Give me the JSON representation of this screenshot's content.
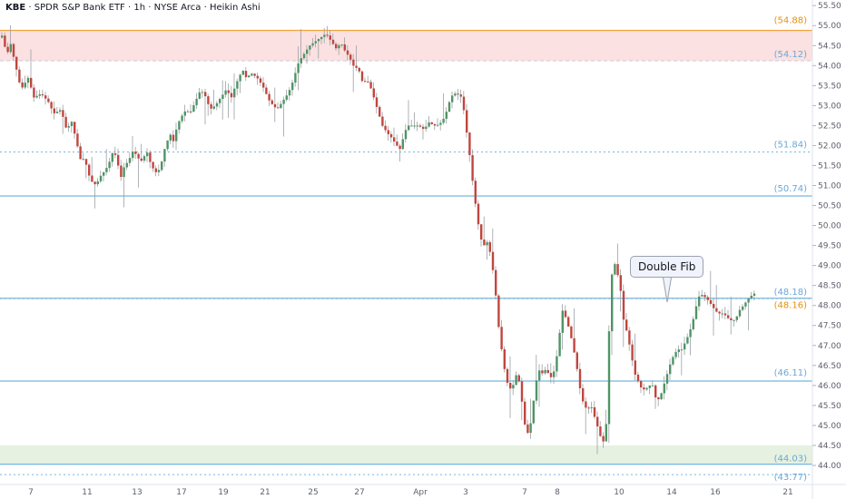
{
  "header": {
    "symbol": "KBE",
    "title": "SPDR S&P Bank ETF",
    "interval": "1h",
    "exchange": "NYSE Arca",
    "chart_style": "Heikin Ashi",
    "separator": "·"
  },
  "colors": {
    "up": "#4f9465",
    "down": "#c0463e",
    "wick": "#9aa0a6",
    "fib_line": "#74b6df",
    "fib_label": "#6aa8d6",
    "resistance": "#f2a33a",
    "resistance_label": "#e8900c",
    "resistance_zone": "#fbe1e1",
    "support_zone": "#e6f1e1"
  },
  "annotation": {
    "text": "Double Fib"
  },
  "chart_data": {
    "type": "candlestick",
    "price_axis": {
      "min": 43.75,
      "max": 55.55,
      "tick_step": 0.5,
      "ticks": [
        "55.50",
        "55.00",
        "54.50",
        "54.00",
        "53.50",
        "53.00",
        "52.50",
        "52.00",
        "51.50",
        "51.00",
        "50.50",
        "50.00",
        "49.50",
        "49.00",
        "48.50",
        "48.00",
        "47.50",
        "47.00",
        "46.50",
        "46.00",
        "45.50",
        "45.00",
        "44.50",
        "44.00"
      ]
    },
    "time_axis": {
      "labels": [
        "7",
        "11",
        "13",
        "17",
        "19",
        "21",
        "25",
        "27",
        "Apr",
        "3",
        "7",
        "8",
        "10",
        "14",
        "16",
        "21"
      ]
    },
    "levels": [
      {
        "label": "(54.88)",
        "value": 54.88,
        "kind": "resistance",
        "style": "solid"
      },
      {
        "label": "(54.12)",
        "value": 54.12,
        "kind": "fib",
        "style": "dashed"
      },
      {
        "label": "(51.84)",
        "value": 51.84,
        "kind": "fib",
        "style": "dotted"
      },
      {
        "label": "(50.74)",
        "value": 50.74,
        "kind": "fib",
        "style": "solid"
      },
      {
        "label": "(48.18)",
        "value": 48.18,
        "kind": "fib",
        "style": "solid"
      },
      {
        "label": "(48.16)",
        "value": 48.16,
        "kind": "resistance",
        "style": "dotted"
      },
      {
        "label": "(46.11)",
        "value": 46.11,
        "kind": "fib",
        "style": "solid"
      },
      {
        "label": "(44.03)",
        "value": 44.03,
        "kind": "fib",
        "style": "solid"
      },
      {
        "label": "(43.77)",
        "value": 43.77,
        "kind": "fib",
        "style": "dotted"
      }
    ],
    "zones": [
      {
        "from": 54.12,
        "to": 54.88,
        "kind": "resistance"
      },
      {
        "from": 44.03,
        "to": 44.5,
        "kind": "support"
      }
    ],
    "path": [
      [
        0,
        54.7
      ],
      [
        2,
        54.8
      ],
      [
        6,
        54.2
      ],
      [
        10,
        54.6
      ],
      [
        16,
        54.0
      ],
      [
        22,
        53.4
      ],
      [
        30,
        53.7
      ],
      [
        36,
        53.2
      ],
      [
        44,
        53.3
      ],
      [
        52,
        53.1
      ],
      [
        58,
        52.8
      ],
      [
        66,
        52.9
      ],
      [
        72,
        52.4
      ],
      [
        78,
        52.6
      ],
      [
        84,
        52.0
      ],
      [
        88,
        51.6
      ],
      [
        92,
        51.7
      ],
      [
        96,
        51.3
      ],
      [
        100,
        51.1
      ],
      [
        105,
        51.0
      ],
      [
        108,
        51.2
      ],
      [
        112,
        51.3
      ],
      [
        118,
        51.5
      ],
      [
        124,
        51.9
      ],
      [
        128,
        51.6
      ],
      [
        132,
        51.2
      ],
      [
        136,
        51.5
      ],
      [
        140,
        51.6
      ],
      [
        146,
        51.9
      ],
      [
        150,
        51.7
      ],
      [
        156,
        51.6
      ],
      [
        160,
        51.9
      ],
      [
        164,
        51.6
      ],
      [
        168,
        51.4
      ],
      [
        172,
        51.3
      ],
      [
        176,
        51.5
      ],
      [
        180,
        51.9
      ],
      [
        186,
        52.3
      ],
      [
        190,
        52.1
      ],
      [
        194,
        52.5
      ],
      [
        198,
        52.7
      ],
      [
        204,
        52.9
      ],
      [
        208,
        52.8
      ],
      [
        214,
        53.1
      ],
      [
        220,
        53.4
      ],
      [
        226,
        53.2
      ],
      [
        230,
        52.9
      ],
      [
        236,
        53.0
      ],
      [
        242,
        53.2
      ],
      [
        248,
        53.4
      ],
      [
        254,
        53.2
      ],
      [
        258,
        53.5
      ],
      [
        262,
        53.7
      ],
      [
        266,
        53.9
      ],
      [
        270,
        53.7
      ],
      [
        276,
        53.8
      ],
      [
        282,
        53.7
      ],
      [
        288,
        53.5
      ],
      [
        292,
        53.3
      ],
      [
        296,
        53.1
      ],
      [
        300,
        53.0
      ],
      [
        304,
        52.9
      ],
      [
        310,
        53.1
      ],
      [
        316,
        53.3
      ],
      [
        320,
        53.5
      ],
      [
        324,
        53.8
      ],
      [
        328,
        54.1
      ],
      [
        334,
        54.3
      ],
      [
        340,
        54.5
      ],
      [
        346,
        54.6
      ],
      [
        352,
        54.7
      ],
      [
        358,
        54.8
      ],
      [
        364,
        54.6
      ],
      [
        370,
        54.4
      ],
      [
        374,
        54.6
      ],
      [
        378,
        54.4
      ],
      [
        384,
        54.2
      ],
      [
        388,
        54.0
      ],
      [
        394,
        53.9
      ],
      [
        398,
        53.6
      ],
      [
        404,
        53.6
      ],
      [
        408,
        53.4
      ],
      [
        412,
        53.1
      ],
      [
        416,
        52.8
      ],
      [
        420,
        52.5
      ],
      [
        426,
        52.3
      ],
      [
        430,
        52.2
      ],
      [
        436,
        52.0
      ],
      [
        440,
        51.9
      ],
      [
        444,
        52.3
      ],
      [
        448,
        52.5
      ],
      [
        454,
        52.5
      ],
      [
        460,
        52.5
      ],
      [
        466,
        52.4
      ],
      [
        472,
        52.6
      ],
      [
        476,
        52.5
      ],
      [
        480,
        52.5
      ],
      [
        486,
        52.6
      ],
      [
        490,
        52.8
      ],
      [
        494,
        53.1
      ],
      [
        498,
        53.3
      ],
      [
        502,
        53.3
      ],
      [
        508,
        53.2
      ],
      [
        512,
        52.5
      ],
      [
        516,
        51.8
      ],
      [
        520,
        51.0
      ],
      [
        524,
        50.3
      ],
      [
        528,
        49.7
      ],
      [
        532,
        49.5
      ],
      [
        536,
        49.6
      ],
      [
        540,
        49.2
      ],
      [
        544,
        48.5
      ],
      [
        548,
        47.5
      ],
      [
        552,
        46.8
      ],
      [
        556,
        46.2
      ],
      [
        560,
        45.9
      ],
      [
        564,
        46.0
      ],
      [
        568,
        46.3
      ],
      [
        572,
        46.0
      ],
      [
        576,
        45.1
      ],
      [
        580,
        44.8
      ],
      [
        584,
        45.1
      ],
      [
        588,
        45.9
      ],
      [
        592,
        46.4
      ],
      [
        596,
        46.3
      ],
      [
        600,
        46.4
      ],
      [
        606,
        46.2
      ],
      [
        610,
        46.4
      ],
      [
        614,
        47.0
      ],
      [
        618,
        47.9
      ],
      [
        622,
        47.7
      ],
      [
        626,
        47.4
      ],
      [
        630,
        47.0
      ],
      [
        634,
        46.5
      ],
      [
        638,
        45.9
      ],
      [
        642,
        45.5
      ],
      [
        646,
        45.4
      ],
      [
        650,
        45.5
      ],
      [
        654,
        45.2
      ],
      [
        658,
        44.9
      ],
      [
        662,
        44.6
      ],
      [
        666,
        44.6
      ],
      [
        670,
        47.5
      ],
      [
        674,
        49.2
      ],
      [
        678,
        48.9
      ],
      [
        682,
        48.5
      ],
      [
        686,
        47.6
      ],
      [
        690,
        47.3
      ],
      [
        694,
        46.8
      ],
      [
        698,
        46.3
      ],
      [
        702,
        46.1
      ],
      [
        706,
        45.9
      ],
      [
        710,
        45.9
      ],
      [
        714,
        46.0
      ],
      [
        718,
        46.0
      ],
      [
        722,
        45.6
      ],
      [
        726,
        45.7
      ],
      [
        730,
        46.0
      ],
      [
        734,
        46.3
      ],
      [
        738,
        46.6
      ],
      [
        742,
        46.8
      ],
      [
        746,
        46.9
      ],
      [
        750,
        46.9
      ],
      [
        754,
        47.1
      ],
      [
        758,
        47.3
      ],
      [
        762,
        47.6
      ],
      [
        766,
        48.0
      ],
      [
        770,
        48.3
      ],
      [
        776,
        48.2
      ],
      [
        780,
        48.1
      ],
      [
        786,
        47.9
      ],
      [
        790,
        47.8
      ],
      [
        796,
        47.8
      ],
      [
        800,
        47.7
      ],
      [
        806,
        47.6
      ],
      [
        810,
        47.7
      ],
      [
        814,
        47.9
      ],
      [
        818,
        48.0
      ],
      [
        824,
        48.2
      ],
      [
        830,
        48.3
      ]
    ]
  }
}
